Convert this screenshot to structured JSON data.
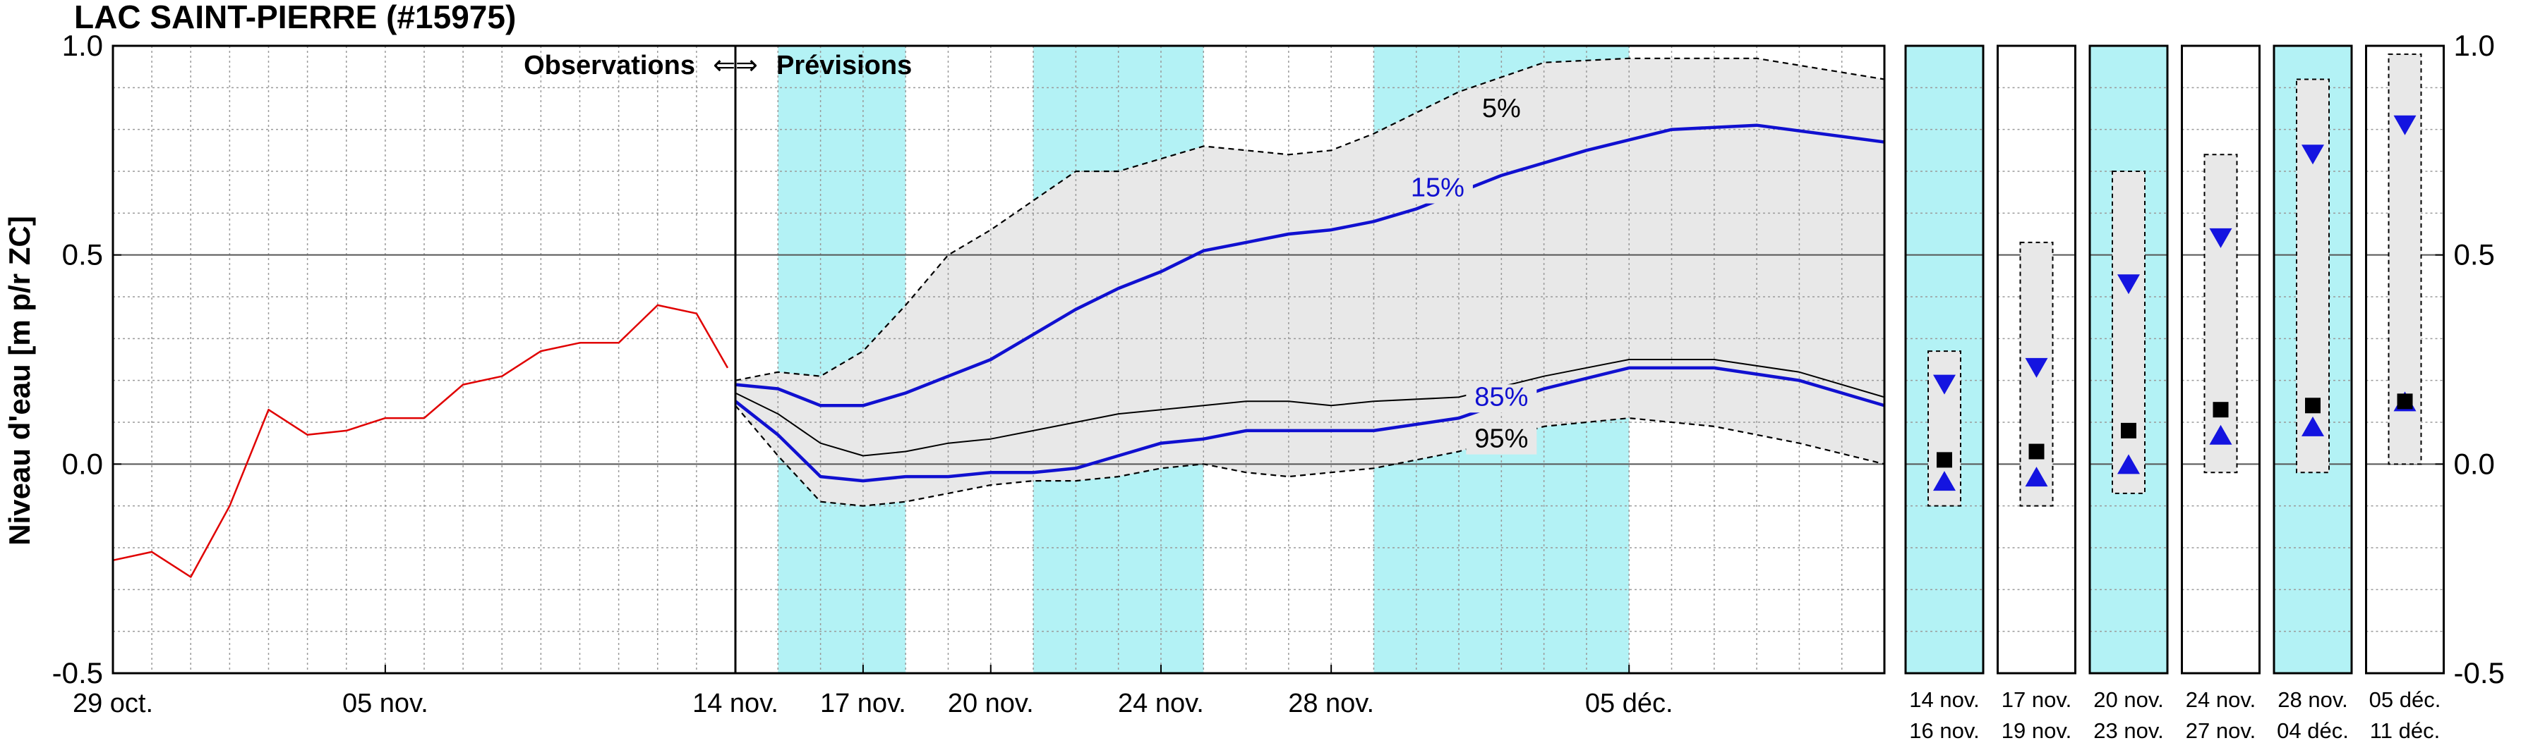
{
  "title": "LAC SAINT-PIERRE (#15975)",
  "ylabel": "Niveau d'eau [m p/r ZC]",
  "obs_label": "Observations",
  "arrow_glyph": "⇐⇒",
  "fc_label": "Prévisions",
  "yticks": [
    "1.0",
    "0.5",
    "0.0",
    "-0.5"
  ],
  "colors": {
    "observed": "#e00000",
    "band_fill": "#e8e8e8",
    "percentile": "#1010d0",
    "median": "#000000",
    "shade": "#b3f2f5",
    "marker_low": "#1414e0",
    "marker_mid": "#000000"
  },
  "chart_data": [
    {
      "type": "line",
      "name": "main",
      "ylim": [
        -0.5,
        1.0
      ],
      "grid": true,
      "observations": {
        "xlim": [
          "2024-10-29",
          "2024-11-14"
        ],
        "xticks": [
          {
            "date": "2024-10-29",
            "label": "29 oct."
          },
          {
            "date": "2024-11-05",
            "label": "05 nov."
          }
        ],
        "series": [
          {
            "style": "red",
            "points": [
              [
                "2024-10-29",
                -0.23
              ],
              [
                "2024-10-30",
                -0.21
              ],
              [
                "2024-10-31",
                -0.27
              ],
              [
                "2024-11-01",
                -0.1
              ],
              [
                "2024-11-02",
                0.13
              ],
              [
                "2024-11-03",
                0.07
              ],
              [
                "2024-11-04",
                0.08
              ],
              [
                "2024-11-05",
                0.11
              ],
              [
                "2024-11-06",
                0.11
              ],
              [
                "2024-11-07",
                0.19
              ],
              [
                "2024-11-08",
                0.21
              ],
              [
                "2024-11-09",
                0.27
              ],
              [
                "2024-11-10",
                0.29
              ],
              [
                "2024-11-11",
                0.29
              ],
              [
                "2024-11-12",
                0.38
              ],
              [
                "2024-11-13",
                0.36
              ],
              [
                "2024-11-13.8",
                0.23
              ]
            ]
          }
        ]
      },
      "forecast": {
        "xlim": [
          "2024-11-14",
          "2024-12-11"
        ],
        "xticks": [
          {
            "date": "2024-11-14",
            "label": "14 nov."
          },
          {
            "date": "2024-11-17",
            "label": "17 nov."
          },
          {
            "date": "2024-11-20",
            "label": "20 nov."
          },
          {
            "date": "2024-11-24",
            "label": "24 nov."
          },
          {
            "date": "2024-11-28",
            "label": "28 nov."
          },
          {
            "date": "2024-12-05",
            "label": "05 déc."
          }
        ],
        "shaded_periods": [
          [
            "2024-11-15",
            "2024-11-18"
          ],
          [
            "2024-11-21",
            "2024-11-25"
          ],
          [
            "2024-11-29",
            "2024-12-05"
          ]
        ],
        "series": [
          {
            "style": "dash",
            "name": "5%",
            "points": [
              [
                "2024-11-14",
                0.2
              ],
              [
                "2024-11-15",
                0.22
              ],
              [
                "2024-11-16",
                0.21
              ],
              [
                "2024-11-17",
                0.27
              ],
              [
                "2024-11-18",
                0.38
              ],
              [
                "2024-11-19",
                0.5
              ],
              [
                "2024-11-20",
                0.56
              ],
              [
                "2024-11-21",
                0.63
              ],
              [
                "2024-11-22",
                0.7
              ],
              [
                "2024-11-23",
                0.7
              ],
              [
                "2024-11-24",
                0.73
              ],
              [
                "2024-11-25",
                0.76
              ],
              [
                "2024-11-26",
                0.75
              ],
              [
                "2024-11-27",
                0.74
              ],
              [
                "2024-11-28",
                0.75
              ],
              [
                "2024-11-29",
                0.79
              ],
              [
                "2024-12-01",
                0.89
              ],
              [
                "2024-12-03",
                0.96
              ],
              [
                "2024-12-05",
                0.97
              ],
              [
                "2024-12-08",
                0.97
              ],
              [
                "2024-12-11",
                0.92
              ]
            ]
          },
          {
            "style": "blue",
            "name": "15%",
            "points": [
              [
                "2024-11-14",
                0.19
              ],
              [
                "2024-11-15",
                0.18
              ],
              [
                "2024-11-16",
                0.14
              ],
              [
                "2024-11-17",
                0.14
              ],
              [
                "2024-11-18",
                0.17
              ],
              [
                "2024-11-19",
                0.21
              ],
              [
                "2024-11-20",
                0.25
              ],
              [
                "2024-11-21",
                0.31
              ],
              [
                "2024-11-22",
                0.37
              ],
              [
                "2024-11-23",
                0.42
              ],
              [
                "2024-11-24",
                0.46
              ],
              [
                "2024-11-25",
                0.51
              ],
              [
                "2024-11-26",
                0.53
              ],
              [
                "2024-11-27",
                0.55
              ],
              [
                "2024-11-28",
                0.56
              ],
              [
                "2024-11-29",
                0.58
              ],
              [
                "2024-11-30",
                0.61
              ],
              [
                "2024-12-02",
                0.69
              ],
              [
                "2024-12-04",
                0.75
              ],
              [
                "2024-12-06",
                0.8
              ],
              [
                "2024-12-08",
                0.81
              ],
              [
                "2024-12-11",
                0.77
              ]
            ]
          },
          {
            "style": "thin",
            "name": "",
            "points": [
              [
                "2024-11-14",
                0.17
              ],
              [
                "2024-11-15",
                0.12
              ],
              [
                "2024-11-16",
                0.05
              ],
              [
                "2024-11-17",
                0.02
              ],
              [
                "2024-11-18",
                0.03
              ],
              [
                "2024-11-19",
                0.05
              ],
              [
                "2024-11-20",
                0.06
              ],
              [
                "2024-11-21",
                0.08
              ],
              [
                "2024-11-22",
                0.1
              ],
              [
                "2024-11-23",
                0.12
              ],
              [
                "2024-11-24",
                0.13
              ],
              [
                "2024-11-25",
                0.14
              ],
              [
                "2024-11-26",
                0.15
              ],
              [
                "2024-11-27",
                0.15
              ],
              [
                "2024-11-28",
                0.14
              ],
              [
                "2024-11-29",
                0.15
              ],
              [
                "2024-12-01",
                0.16
              ],
              [
                "2024-12-03",
                0.21
              ],
              [
                "2024-12-05",
                0.25
              ],
              [
                "2024-12-07",
                0.25
              ],
              [
                "2024-12-09",
                0.22
              ],
              [
                "2024-12-11",
                0.16
              ]
            ]
          },
          {
            "style": "blue",
            "name": "85%",
            "points": [
              [
                "2024-11-14",
                0.15
              ],
              [
                "2024-11-15",
                0.07
              ],
              [
                "2024-11-16",
                -0.03
              ],
              [
                "2024-11-17",
                -0.04
              ],
              [
                "2024-11-18",
                -0.03
              ],
              [
                "2024-11-19",
                -0.03
              ],
              [
                "2024-11-20",
                -0.02
              ],
              [
                "2024-11-21",
                -0.02
              ],
              [
                "2024-11-22",
                -0.01
              ],
              [
                "2024-11-23",
                0.02
              ],
              [
                "2024-11-24",
                0.05
              ],
              [
                "2024-11-25",
                0.06
              ],
              [
                "2024-11-26",
                0.08
              ],
              [
                "2024-11-27",
                0.08
              ],
              [
                "2024-11-28",
                0.08
              ],
              [
                "2024-11-29",
                0.08
              ],
              [
                "2024-12-01",
                0.11
              ],
              [
                "2024-12-03",
                0.18
              ],
              [
                "2024-12-05",
                0.23
              ],
              [
                "2024-12-07",
                0.23
              ],
              [
                "2024-12-09",
                0.2
              ],
              [
                "2024-12-11",
                0.14
              ]
            ]
          },
          {
            "style": "dash",
            "name": "95%",
            "points": [
              [
                "2024-11-14",
                0.14
              ],
              [
                "2024-11-15",
                0.02
              ],
              [
                "2024-11-16",
                -0.09
              ],
              [
                "2024-11-17",
                -0.1
              ],
              [
                "2024-11-18",
                -0.09
              ],
              [
                "2024-11-19",
                -0.07
              ],
              [
                "2024-11-20",
                -0.05
              ],
              [
                "2024-11-21",
                -0.04
              ],
              [
                "2024-11-22",
                -0.04
              ],
              [
                "2024-11-23",
                -0.03
              ],
              [
                "2024-11-24",
                -0.01
              ],
              [
                "2024-11-25",
                0.0
              ],
              [
                "2024-11-26",
                -0.02
              ],
              [
                "2024-11-27",
                -0.03
              ],
              [
                "2024-11-28",
                -0.02
              ],
              [
                "2024-11-29",
                -0.01
              ],
              [
                "2024-12-01",
                0.03
              ],
              [
                "2024-12-03",
                0.09
              ],
              [
                "2024-12-05",
                0.11
              ],
              [
                "2024-12-07",
                0.09
              ],
              [
                "2024-12-09",
                0.05
              ],
              [
                "2024-12-11",
                0.0
              ]
            ]
          }
        ]
      }
    },
    {
      "type": "box",
      "name": "weekly summary",
      "ylim": [
        -0.5,
        1.0
      ],
      "yticks_right": [
        "1.0",
        "0.5",
        "0.0",
        "-0.5"
      ],
      "panels": [
        {
          "label1": "14 nov.",
          "label2": "16 nov.",
          "shaded": true,
          "lo": -0.1,
          "hi": 0.27,
          "low_tri": 0.19,
          "mid": 0.01,
          "high_tri": -0.04
        },
        {
          "label1": "17 nov.",
          "label2": "19 nov.",
          "shaded": false,
          "lo": -0.1,
          "hi": 0.53,
          "low_tri": 0.23,
          "mid": 0.03,
          "high_tri": -0.03
        },
        {
          "label1": "20 nov.",
          "label2": "23 nov.",
          "shaded": true,
          "lo": -0.07,
          "hi": 0.7,
          "low_tri": 0.43,
          "mid": 0.08,
          "high_tri": 0.0
        },
        {
          "label1": "24 nov.",
          "label2": "27 nov.",
          "shaded": false,
          "lo": -0.02,
          "hi": 0.74,
          "low_tri": 0.54,
          "mid": 0.13,
          "high_tri": 0.07
        },
        {
          "label1": "28 nov.",
          "label2": "04 déc.",
          "shaded": true,
          "lo": -0.02,
          "hi": 0.92,
          "low_tri": 0.74,
          "mid": 0.14,
          "high_tri": 0.09
        },
        {
          "label1": "05 déc.",
          "label2": "11 déc.",
          "shaded": false,
          "lo": 0.0,
          "hi": 0.98,
          "low_tri": 0.81,
          "mid": 0.15,
          "high_tri": 0.15
        }
      ]
    }
  ]
}
